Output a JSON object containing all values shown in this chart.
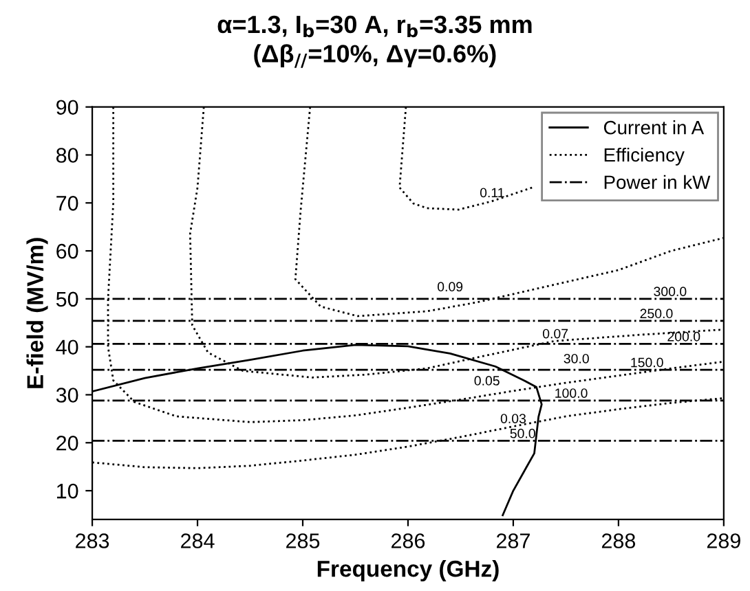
{
  "chart_data": {
    "type": "line",
    "title": "α=1.3, I$_{b}$=30 A, r$_{b}$=3.35 mm",
    "subtitle": "(Δβ$_{//}$=10%, Δγ=0.6%)",
    "xlabel": "Frequency (GHz)",
    "ylabel": "E-field (MV/m)",
    "xlim": [
      283,
      289
    ],
    "ylim": [
      4,
      90
    ],
    "xticks": [
      283,
      284,
      285,
      286,
      287,
      288,
      289
    ],
    "yticks": [
      10,
      20,
      30,
      40,
      50,
      60,
      70,
      80,
      90
    ],
    "grid": false,
    "legend": "top right",
    "marker": "none",
    "series": [
      {
        "name": "Current in A",
        "color": "#000000",
        "line_style": "solid",
        "x": [
          283,
          283.5,
          284,
          284.5,
          285,
          285.5,
          286,
          286.4,
          286.83,
          287.1,
          287.22,
          287.27,
          287.24,
          287.2,
          287.0,
          286.9
        ],
        "values": [
          30.7,
          33.5,
          35.5,
          37.3,
          39.2,
          40.4,
          40.1,
          38.6,
          35.9,
          33,
          31.6,
          28,
          25.4,
          17.8,
          10,
          4.9
        ]
      },
      {
        "name": "Efficiency",
        "color": "#000000",
        "line_style": "dotted",
        "x": [
          283,
          283.5,
          284,
          284.5,
          285,
          285.5,
          286,
          286.5,
          287,
          287.5,
          288,
          288.5,
          289
        ],
        "values": [
          15.9,
          14.9,
          14.7,
          15.2,
          16.3,
          17.5,
          19.2,
          21.2,
          23.4,
          25.5,
          27,
          28.3,
          29.3
        ]
      },
      {
        "color": "#000000",
        "line_style": "dotted",
        "x": [
          283.2,
          283.2,
          283.15,
          283.15,
          283.2,
          283.4,
          283.8,
          284.5,
          285,
          285.5,
          286,
          286.5,
          287,
          287.5,
          288,
          288.5,
          289
        ],
        "values": [
          90,
          70,
          50,
          40,
          33,
          28.5,
          25.5,
          24.3,
          24.7,
          25.7,
          27.3,
          29,
          30.8,
          32.5,
          34,
          35.5,
          36.9
        ]
      },
      {
        "color": "#000000",
        "line_style": "dotted",
        "x": [
          284.06,
          284.0,
          283.93,
          283.95,
          284.1,
          284.43,
          285.09,
          285.6,
          286.18,
          286.7,
          287.39,
          288.2,
          289
        ],
        "values": [
          90,
          73.2,
          63.6,
          44.5,
          38.8,
          35,
          33.6,
          34.2,
          35.5,
          38,
          41.2,
          42.5,
          43.6
        ]
      },
      {
        "color": "#000000",
        "line_style": "dotted",
        "x": [
          285.07,
          284.98,
          284.93,
          285.17,
          285.52,
          286.18,
          286.66,
          287.3,
          288.0,
          288.5,
          289
        ],
        "values": [
          90,
          68.4,
          54.1,
          48.4,
          46.4,
          47.4,
          49.3,
          52.5,
          56.0,
          60,
          62.7
        ]
      },
      {
        "color": "#000000",
        "line_style": "dotted",
        "x": [
          285.98,
          285.92,
          286.05,
          286.18,
          286.48,
          286.79,
          287.18
        ],
        "values": [
          90,
          73.2,
          69.9,
          68.9,
          68.6,
          70.3,
          73.2
        ]
      },
      {
        "name": "Power in kW",
        "color": "#000000",
        "line_style": "dashdot",
        "x": [
          283,
          289
        ],
        "values": [
          50,
          50
        ]
      },
      {
        "color": "#000000",
        "line_style": "dashdot",
        "x": [
          283,
          289
        ],
        "values": [
          45.4,
          45.4
        ]
      },
      {
        "color": "#000000",
        "line_style": "dashdot",
        "x": [
          283,
          289
        ],
        "values": [
          40.6,
          40.6
        ]
      },
      {
        "color": "#000000",
        "line_style": "dashdot",
        "x": [
          283,
          289
        ],
        "values": [
          35.2,
          35.2
        ]
      },
      {
        "color": "#000000",
        "line_style": "dashdot",
        "x": [
          283,
          289
        ],
        "values": [
          28.8,
          28.8
        ]
      },
      {
        "color": "#000000",
        "line_style": "dashdot",
        "x": [
          283,
          289
        ],
        "values": [
          20.4,
          20.4
        ]
      }
    ],
    "annotations": [
      {
        "text": "300.0",
        "x": 288.49,
        "y": 50
      },
      {
        "text": "250.0",
        "x": 288.36,
        "y": 45.4
      },
      {
        "text": "200.0",
        "x": 288.62,
        "y": 40.6
      },
      {
        "text": "150.0",
        "x": 288.27,
        "y": 35.2
      },
      {
        "text": "100.0",
        "x": 287.55,
        "y": 28.8
      },
      {
        "text": "50.0",
        "x": 287.09,
        "y": 20.4
      },
      {
        "text": "0.11",
        "x": 286.8,
        "y": 70.6
      },
      {
        "text": "0.09",
        "x": 286.4,
        "y": 51
      },
      {
        "text": "0.07",
        "x": 287.4,
        "y": 41.2
      },
      {
        "text": "0.05",
        "x": 286.75,
        "y": 31.4
      },
      {
        "text": "0.03",
        "x": 287.0,
        "y": 23.5
      },
      {
        "text": "30.0",
        "x": 287.6,
        "y": 36.0
      }
    ]
  }
}
